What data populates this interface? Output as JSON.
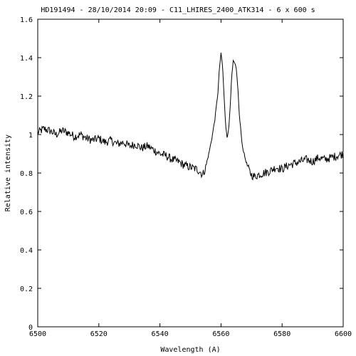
{
  "chart_data": {
    "type": "line",
    "title": "HD191494 - 28/10/2014 20:09 - C11_LHIRES_2400_ATK314 - 6 x 600 s",
    "xlabel": "Wavelength (A)",
    "ylabel": "Relative intensity",
    "xlim": [
      6500,
      6600
    ],
    "ylim": [
      0,
      1.6
    ],
    "x_ticks": [
      6500,
      6520,
      6540,
      6560,
      6580,
      6600
    ],
    "x_tick_labels": [
      "6500",
      "6520",
      "6540",
      "6560",
      "6580",
      "6600"
    ],
    "y_ticks": [
      0,
      0.2,
      0.4,
      0.6,
      0.8,
      1,
      1.2,
      1.4,
      1.6
    ],
    "y_tick_labels": [
      "0",
      "0.2",
      "0.4",
      "0.6",
      "0.8",
      "1",
      "1.2",
      "1.4",
      "1.6"
    ],
    "grid": false,
    "legend": "none",
    "colors": {
      "line": "#000000",
      "axes": "#000000",
      "background": "#ffffff"
    },
    "series": [
      {
        "x": [
          6500,
          6502,
          6504,
          6506,
          6508,
          6510,
          6512,
          6514,
          6516,
          6518,
          6520,
          6522,
          6524,
          6526,
          6528,
          6530,
          6532,
          6534,
          6536,
          6538,
          6540,
          6542,
          6544,
          6546,
          6548,
          6550,
          6552,
          6553,
          6554,
          6555,
          6556,
          6557,
          6558,
          6559,
          6559.5,
          6560,
          6560.5,
          6561,
          6561.5,
          6562,
          6562.5,
          6563,
          6563.5,
          6564,
          6564.5,
          6565,
          6565.5,
          6566,
          6566.5,
          6567,
          6568,
          6569,
          6570,
          6571,
          6572,
          6574,
          6576,
          6578,
          6580,
          6582,
          6584,
          6586,
          6588,
          6590,
          6592,
          6594,
          6596,
          6598,
          6600
        ],
        "y": [
          1.01,
          1.03,
          1.02,
          1.0,
          1.02,
          1.01,
          0.99,
          1.0,
          0.98,
          0.97,
          0.98,
          0.96,
          0.97,
          0.95,
          0.96,
          0.94,
          0.95,
          0.93,
          0.94,
          0.92,
          0.9,
          0.89,
          0.87,
          0.86,
          0.84,
          0.83,
          0.82,
          0.81,
          0.79,
          0.83,
          0.9,
          0.98,
          1.08,
          1.22,
          1.35,
          1.42,
          1.36,
          1.2,
          1.05,
          0.99,
          1.02,
          1.15,
          1.3,
          1.38,
          1.37,
          1.34,
          1.25,
          1.1,
          1.02,
          0.94,
          0.87,
          0.82,
          0.79,
          0.78,
          0.79,
          0.8,
          0.81,
          0.83,
          0.82,
          0.84,
          0.85,
          0.86,
          0.87,
          0.86,
          0.88,
          0.87,
          0.88,
          0.89,
          0.9
        ]
      }
    ]
  }
}
